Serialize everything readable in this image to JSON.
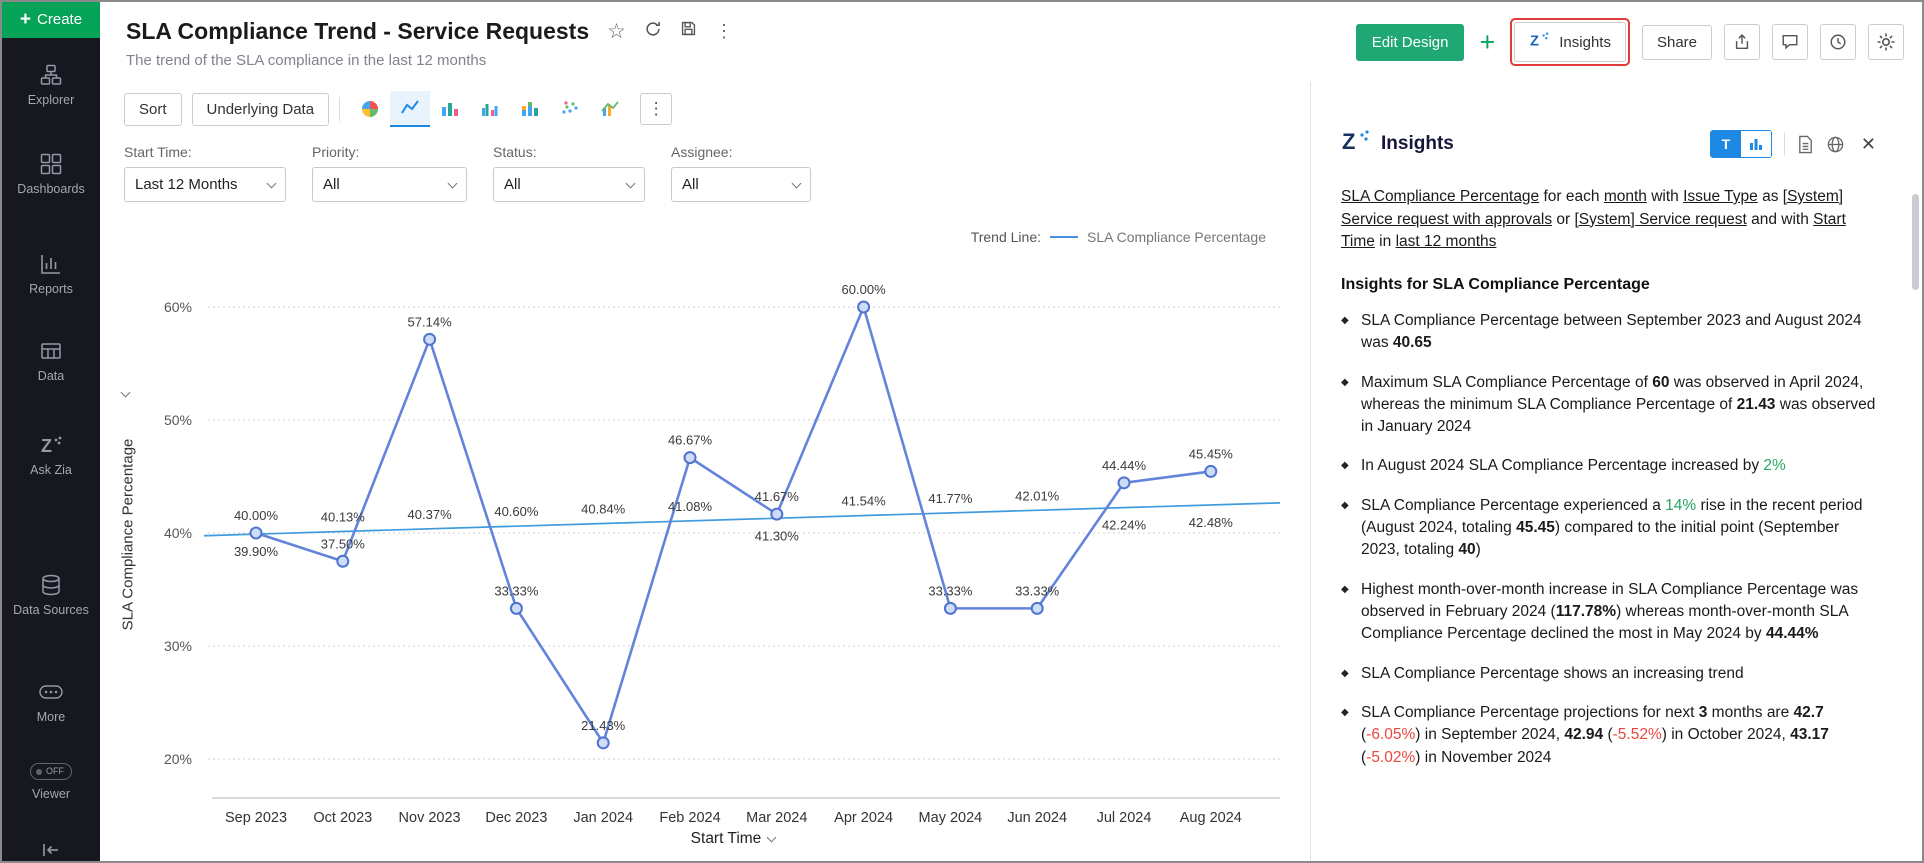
{
  "icons": {
    "star": "☆",
    "kebab": "⋮",
    "close": "✕",
    "plus": "+",
    "diamond": "◆"
  },
  "colors": {
    "sidebar_create_green": "#05a357",
    "edit_design_green": "#1fa874",
    "highlight_red": "#e23b3b",
    "positive_green": "#27a561",
    "negative_red": "#e8483c",
    "accent_blue": "#1e88e5",
    "series_blue": "#6384db",
    "trend_blue": "#3f9be0"
  },
  "sidebar": {
    "create": {
      "label": "Create"
    },
    "items": [
      {
        "label": "Explorer"
      },
      {
        "label": "Dashboards"
      },
      {
        "label": "Reports"
      },
      {
        "label": "Data"
      },
      {
        "label": "Ask Zia"
      },
      {
        "label": "Data Sources"
      },
      {
        "label": "More"
      }
    ],
    "viewer": {
      "label": "Viewer",
      "badge": "OFF"
    }
  },
  "header": {
    "title": "SLA Compliance Trend - Service Requests",
    "subtitle": "The trend of the SLA compliance in the last 12 months",
    "edit_design": "Edit Design",
    "insights": "Insights",
    "share": "Share"
  },
  "toolbar": {
    "sort": "Sort",
    "underlying_data": "Underlying Data"
  },
  "filters": [
    {
      "label": "Start Time:",
      "value": "Last 12 Months"
    },
    {
      "label": "Priority:",
      "value": "All"
    },
    {
      "label": "Status:",
      "value": "All"
    },
    {
      "label": "Assignee:",
      "value": "All"
    }
  ],
  "chart_data": {
    "type": "line",
    "categories": [
      "Sep 2023",
      "Oct 2023",
      "Nov 2023",
      "Dec 2023",
      "Jan 2024",
      "Feb 2024",
      "Mar 2024",
      "Apr 2024",
      "May 2024",
      "Jun 2024",
      "Jul 2024",
      "Aug 2024"
    ],
    "series": [
      {
        "name": "SLA Compliance Percentage",
        "values": [
          40.0,
          37.5,
          57.14,
          33.33,
          21.43,
          46.67,
          41.67,
          60.0,
          33.33,
          33.33,
          44.44,
          45.45
        ],
        "labels": [
          "40.00%",
          "37.50%",
          "57.14%",
          "33.33%",
          "21.43%",
          "46.67%",
          "41.67%",
          "60.00%",
          "33.33%",
          "33.33%",
          "44.44%",
          "45.45%"
        ]
      },
      {
        "name": "Trend Line",
        "values": [
          39.9,
          40.13,
          40.37,
          40.6,
          40.84,
          41.08,
          41.3,
          41.54,
          41.77,
          42.01,
          42.24,
          42.48
        ],
        "labels": [
          "39.90%",
          "40.13%",
          "40.37%",
          "40.60%",
          "40.84%",
          "41.08%",
          "41.30%",
          "41.54%",
          "41.77%",
          "42.01%",
          "42.24%",
          "42.48%"
        ]
      }
    ],
    "xlabel": "Start Time",
    "ylabel": "SLA Compliance  Percentage",
    "ylim": [
      20,
      60
    ],
    "yticks": [
      "20%",
      "30%",
      "40%",
      "50%",
      "60%"
    ],
    "ytick_values": [
      20,
      30,
      40,
      50,
      60
    ],
    "grid": "dotted-horizontal",
    "legend_position": "top-right",
    "legend_label": "Trend Line:",
    "legend_series": "SLA Compliance Percentage"
  },
  "insights": {
    "title": "Insights",
    "text_toggle": "T",
    "description": [
      {
        "t": "SLA Compliance Percentage",
        "u": true
      },
      {
        "t": " for each "
      },
      {
        "t": "month",
        "u": true
      },
      {
        "t": " with "
      },
      {
        "t": "Issue Type",
        "u": true
      },
      {
        "t": " as "
      },
      {
        "t": "[System] Service request with approvals",
        "u": true
      },
      {
        "t": " or "
      },
      {
        "t": "[System] Service request",
        "u": true
      },
      {
        "t": " and with "
      },
      {
        "t": "Start Time",
        "u": true
      },
      {
        "t": " in "
      },
      {
        "t": "last 12 months",
        "u": true
      }
    ],
    "heading": "Insights for SLA Compliance Percentage",
    "bullets": [
      [
        {
          "t": "SLA Compliance Percentage between September 2023 and August 2024 was "
        },
        {
          "t": "40.65",
          "b": true
        }
      ],
      [
        {
          "t": "Maximum SLA Compliance Percentage of "
        },
        {
          "t": "60",
          "b": true
        },
        {
          "t": " was observed in April 2024, whereas the minimum SLA Compliance Percentage of "
        },
        {
          "t": "21.43",
          "b": true
        },
        {
          "t": " was observed in January 2024"
        }
      ],
      [
        {
          "t": "In August 2024 SLA Compliance Percentage increased by "
        },
        {
          "t": "2%",
          "c": "green"
        }
      ],
      [
        {
          "t": "SLA Compliance Percentage experienced a "
        },
        {
          "t": "14%",
          "c": "green"
        },
        {
          "t": " rise in the recent period (August 2024, totaling "
        },
        {
          "t": "45.45",
          "b": true
        },
        {
          "t": ") compared to the initial point (September 2023, totaling "
        },
        {
          "t": "40",
          "b": true
        },
        {
          "t": ")"
        }
      ],
      [
        {
          "t": "Highest month-over-month increase in SLA Compliance Percentage was observed in February 2024 ("
        },
        {
          "t": "117.78%",
          "b": true
        },
        {
          "t": ") whereas month-over-month SLA Compliance Percentage declined the most in May 2024 by "
        },
        {
          "t": "44.44%",
          "b": true
        }
      ],
      [
        {
          "t": "SLA Compliance Percentage shows an increasing trend"
        }
      ],
      [
        {
          "t": "SLA Compliance Percentage projections for next "
        },
        {
          "t": "3",
          "b": true
        },
        {
          "t": " months are "
        },
        {
          "t": "42.7",
          "b": true
        },
        {
          "t": " ("
        },
        {
          "t": "-6.05%",
          "c": "red"
        },
        {
          "t": ") in September 2024, "
        },
        {
          "t": "42.94",
          "b": true
        },
        {
          "t": " ("
        },
        {
          "t": "-5.52%",
          "c": "red"
        },
        {
          "t": ") in October 2024, "
        },
        {
          "t": "43.17",
          "b": true
        },
        {
          "t": " ("
        },
        {
          "t": "-5.02%",
          "c": "red"
        },
        {
          "t": ") in November 2024"
        }
      ]
    ]
  }
}
